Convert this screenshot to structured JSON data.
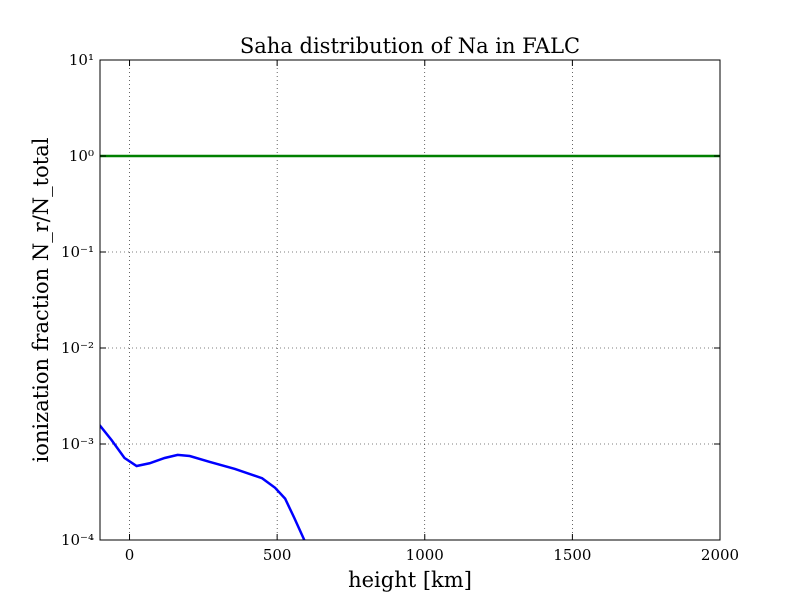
{
  "chart_data": {
    "type": "line",
    "title": "Saha distribution of Na in FALC",
    "xlabel": "height [km]",
    "ylabel": "ionization fraction N_r/N_total",
    "xlim": [
      -100,
      2000
    ],
    "xticks": [
      0,
      500,
      1000,
      1500,
      2000
    ],
    "ylim": [
      0.0001,
      10
    ],
    "yscale": "log",
    "yticks": [
      {
        "value": 0.0001,
        "label": "10⁻⁴"
      },
      {
        "value": 0.001,
        "label": "10⁻³"
      },
      {
        "value": 0.01,
        "label": "10⁻²"
      },
      {
        "value": 0.1,
        "label": "10⁻¹"
      },
      {
        "value": 1,
        "label": "10⁰"
      },
      {
        "value": 10,
        "label": "10¹"
      }
    ],
    "grid": true,
    "series": [
      {
        "color": "#0000ff",
        "x": [
          -102,
          -61,
          -17,
          24,
          68,
          119,
          163,
          204,
          272,
          357,
          449,
          493,
          527,
          558,
          592,
          620
        ],
        "values": [
          0.00158,
          0.0011,
          0.000715,
          0.00059,
          0.00063,
          0.000715,
          0.00077,
          0.00075,
          0.00065,
          0.00055,
          0.00044,
          0.00035,
          0.00027,
          0.00017,
          0.0001,
          5e-05
        ]
      },
      {
        "color": "#008000",
        "x": [
          -100,
          2000
        ],
        "values": [
          1,
          1
        ]
      }
    ]
  }
}
